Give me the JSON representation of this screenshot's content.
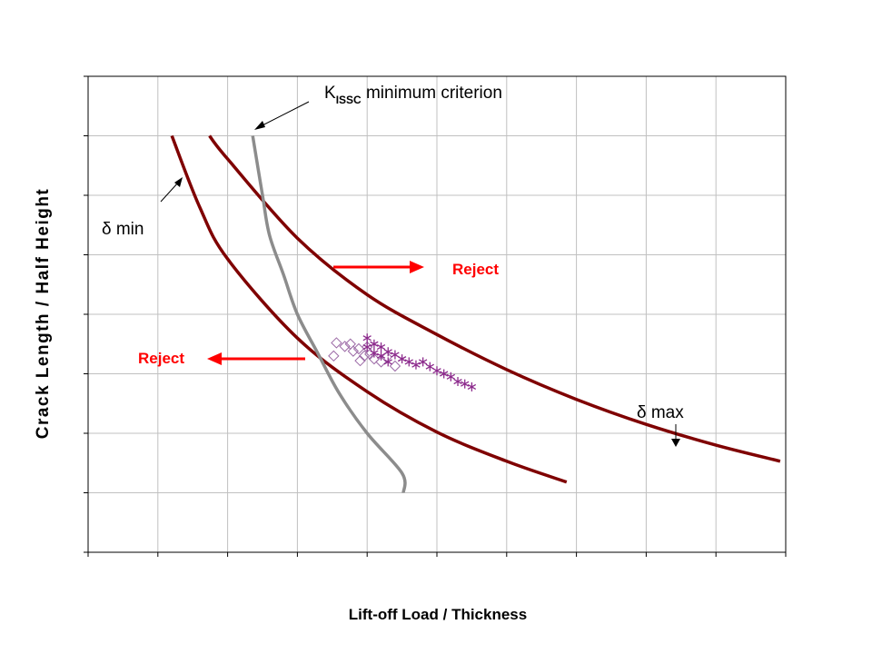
{
  "chart_data": {
    "type": "line",
    "title": "",
    "xlabel": "Lift-off Load / Thickness",
    "ylabel": "Crack Length / Half Height",
    "xlim": [
      0,
      0.5
    ],
    "ylim": [
      0.2,
      1.0
    ],
    "grid": true,
    "series": [
      {
        "name": "δ min",
        "color": "#7f0000",
        "points": [
          [
            0.06,
            0.9
          ],
          [
            0.08,
            0.78
          ],
          [
            0.1,
            0.693
          ],
          [
            0.15,
            0.56
          ],
          [
            0.2,
            0.47
          ],
          [
            0.25,
            0.402
          ],
          [
            0.3,
            0.353
          ],
          [
            0.343,
            0.318
          ]
        ]
      },
      {
        "name": "δ max",
        "color": "#7f0000",
        "points": [
          [
            0.087,
            0.9
          ],
          [
            0.1,
            0.861
          ],
          [
            0.15,
            0.728
          ],
          [
            0.2,
            0.633
          ],
          [
            0.25,
            0.566
          ],
          [
            0.3,
            0.507
          ],
          [
            0.35,
            0.457
          ],
          [
            0.4,
            0.415
          ],
          [
            0.45,
            0.38
          ],
          [
            0.496,
            0.353
          ]
        ]
      },
      {
        "name": "KISSC minimum criterion",
        "color": "#8c8c8c",
        "points": [
          [
            0.118,
            0.9
          ],
          [
            0.125,
            0.8
          ],
          [
            0.13,
            0.733
          ],
          [
            0.14,
            0.667
          ],
          [
            0.15,
            0.6
          ],
          [
            0.165,
            0.533
          ],
          [
            0.18,
            0.467
          ],
          [
            0.2,
            0.4
          ],
          [
            0.225,
            0.333
          ],
          [
            0.226,
            0.3
          ]
        ]
      }
    ],
    "scatter": [
      {
        "marker": "diamond",
        "color": "#9c6aa6",
        "points": [
          [
            0.178,
            0.552
          ],
          [
            0.184,
            0.546
          ],
          [
            0.19,
            0.538
          ],
          [
            0.194,
            0.542
          ],
          [
            0.198,
            0.53
          ],
          [
            0.202,
            0.533
          ],
          [
            0.205,
            0.525
          ],
          [
            0.21,
            0.52
          ],
          [
            0.214,
            0.528
          ],
          [
            0.22,
            0.513
          ],
          [
            0.176,
            0.53
          ],
          [
            0.195,
            0.522
          ],
          [
            0.188,
            0.55
          ],
          [
            0.2,
            0.545
          ]
        ]
      },
      {
        "marker": "asterisk",
        "color": "#8c2a8c",
        "points": [
          [
            0.2,
            0.56
          ],
          [
            0.205,
            0.55
          ],
          [
            0.21,
            0.545
          ],
          [
            0.215,
            0.537
          ],
          [
            0.22,
            0.532
          ],
          [
            0.225,
            0.525
          ],
          [
            0.23,
            0.52
          ],
          [
            0.235,
            0.515
          ],
          [
            0.24,
            0.52
          ],
          [
            0.245,
            0.512
          ],
          [
            0.25,
            0.505
          ],
          [
            0.255,
            0.5
          ],
          [
            0.26,
            0.495
          ],
          [
            0.265,
            0.487
          ],
          [
            0.27,
            0.483
          ],
          [
            0.275,
            0.478
          ],
          [
            0.2,
            0.545
          ],
          [
            0.205,
            0.535
          ],
          [
            0.21,
            0.53
          ],
          [
            0.215,
            0.52
          ]
        ]
      }
    ],
    "annotations": {
      "k_prefix": "K",
      "k_subscript": "ISSC",
      "k_rest": " minimum criterion",
      "delta_min": "δ min",
      "delta_max": "δ max",
      "reject_right": "Reject",
      "reject_left": "Reject"
    },
    "colors": {
      "curve": "#7f0000",
      "criterion": "#8c8c8c",
      "reject": "#ff0000",
      "grid": "#c0c0c0"
    }
  }
}
